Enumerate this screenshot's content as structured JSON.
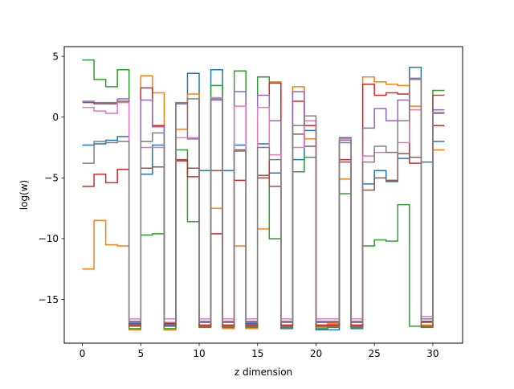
{
  "chart_data": {
    "type": "line",
    "step": "post",
    "xlabel": "z dimension",
    "ylabel": "log(w)",
    "xlim": [
      -1.55,
      32.55
    ],
    "ylim": [
      -18.6,
      5.8
    ],
    "xticks": [
      0,
      5,
      10,
      15,
      20,
      25,
      30
    ],
    "yticks": [
      5,
      0,
      -5,
      -10,
      -15
    ],
    "ytick_labels": [
      "5",
      "0",
      "−5",
      "−10",
      "−15"
    ],
    "x": [
      0,
      1,
      2,
      3,
      4,
      5,
      6,
      7,
      8,
      9,
      10,
      11,
      12,
      13,
      14,
      15,
      16,
      17,
      18,
      19,
      20,
      21,
      22,
      23,
      24,
      25,
      26,
      27,
      28,
      29,
      30,
      31
    ],
    "series": [
      {
        "color": "#1f77b4",
        "values": [
          -2.3,
          -2.2,
          -1.9,
          -1.6,
          -17.0,
          -4.7,
          -2.3,
          -17.1,
          1.1,
          3.6,
          -4.4,
          3.9,
          -4.4,
          -2.3,
          -17.0,
          -2.2,
          -4.6,
          -17.4,
          -3.5,
          -1.1,
          -17.5,
          -17.5,
          -1.7,
          -17.4,
          -5.5,
          -4.4,
          -5.3,
          -3.4,
          4.1,
          -3.7,
          -2.0,
          -2.0
        ]
      },
      {
        "color": "#ff7f0e",
        "values": [
          -12.5,
          -8.5,
          -10.5,
          -10.6,
          -17.5,
          3.4,
          2.0,
          -17.5,
          -1.0,
          1.9,
          -17.3,
          -7.5,
          -17.4,
          -10.6,
          -17.4,
          -9.2,
          2.9,
          -17.3,
          2.5,
          -1.8,
          -17.3,
          -17.0,
          -5.1,
          -17.2,
          3.3,
          2.9,
          2.7,
          2.6,
          0.9,
          -17.1,
          -2.7,
          -2.7
        ]
      },
      {
        "color": "#2ca02c",
        "values": [
          4.7,
          3.1,
          2.5,
          3.9,
          -17.4,
          -9.7,
          -9.6,
          -17.4,
          -2.7,
          -8.6,
          -17.3,
          2.6,
          -17.3,
          3.8,
          -17.3,
          3.3,
          -10.0,
          -17.3,
          -4.5,
          -3.3,
          -17.4,
          -17.3,
          -6.3,
          -17.3,
          -10.6,
          -10.1,
          -10.2,
          -7.2,
          -17.2,
          -17.3,
          2.2,
          2.2
        ]
      },
      {
        "color": "#d62728",
        "values": [
          -5.7,
          -4.7,
          -5.4,
          -4.3,
          -17.1,
          2.4,
          -0.7,
          -17.0,
          -3.6,
          -4.9,
          -17.1,
          -9.6,
          -17.1,
          -5.2,
          -17.1,
          -5.0,
          2.8,
          -17.1,
          1.3,
          -0.7,
          -17.1,
          -17.1,
          -3.5,
          -17.1,
          2.7,
          1.8,
          2.0,
          1.9,
          -3.8,
          -16.8,
          -0.7,
          -0.7
        ]
      },
      {
        "color": "#9467bd",
        "values": [
          1.3,
          1.2,
          1.2,
          1.5,
          -16.8,
          1.4,
          -0.8,
          -16.9,
          1.1,
          -1.8,
          -16.8,
          1.4,
          -16.8,
          2.1,
          -16.8,
          1.8,
          -0.3,
          -16.8,
          2.1,
          -0.3,
          -16.8,
          -16.8,
          -2.1,
          -16.8,
          -0.9,
          0.7,
          -0.3,
          1.4,
          3.1,
          -16.6,
          0.6,
          0.6
        ]
      },
      {
        "color": "#8c564b",
        "values": [
          1.2,
          1.1,
          1.1,
          1.3,
          -17.2,
          -4.2,
          -4.1,
          -17.2,
          -3.5,
          -4.2,
          -17.2,
          -4.4,
          -17.2,
          -2.7,
          -17.2,
          -4.8,
          -5.7,
          -17.2,
          -1.4,
          -2.4,
          -17.2,
          -17.2,
          -3.7,
          -17.2,
          -6.0,
          -5.0,
          -5.2,
          -3.0,
          -3.3,
          -17.2,
          1.8,
          1.8
        ]
      },
      {
        "color": "#e377c2",
        "values": [
          0.8,
          0.5,
          0.3,
          1.2,
          -16.6,
          -2.5,
          -2.5,
          -16.6,
          -1.7,
          -1.7,
          -16.6,
          1.6,
          -16.6,
          0.9,
          -16.6,
          0.8,
          -3.1,
          -16.6,
          -2.5,
          -0.3,
          -16.6,
          -16.6,
          -1.8,
          -16.6,
          -3.2,
          -2.9,
          -2.9,
          -2.1,
          0.6,
          -16.4,
          0.4,
          0.4
        ]
      },
      {
        "color": "#7f7f7f",
        "values": [
          -3.8,
          -2.0,
          -2.1,
          -2.0,
          -16.9,
          -2.0,
          -1.3,
          -16.9,
          1.2,
          1.5,
          -16.9,
          1.5,
          -16.9,
          -2.8,
          -16.9,
          -2.5,
          -3.5,
          -16.9,
          -0.7,
          0.1,
          -16.9,
          -16.9,
          -1.9,
          -16.9,
          -3.7,
          -2.4,
          -2.9,
          -0.3,
          3.2,
          -16.9,
          0.3,
          0.3
        ]
      }
    ]
  }
}
